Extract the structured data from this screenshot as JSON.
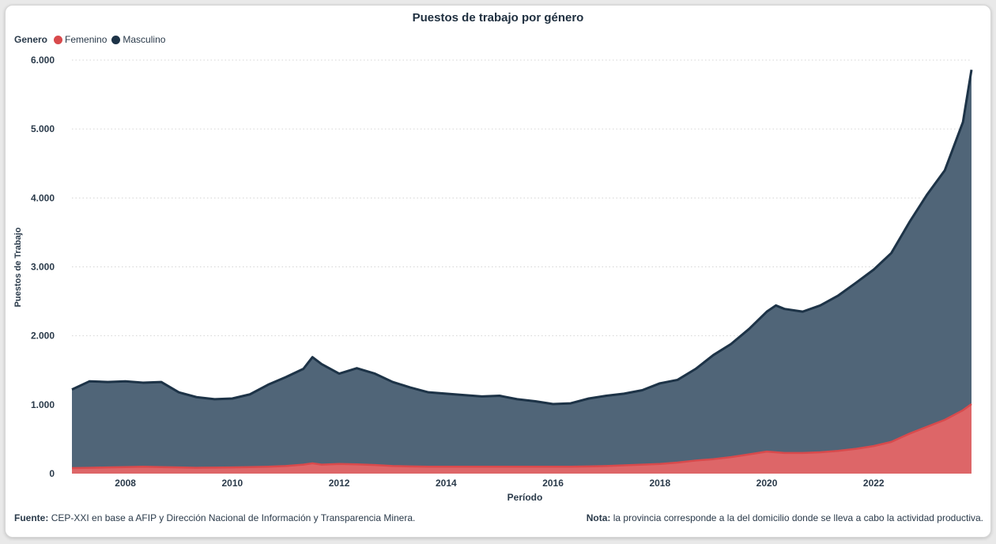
{
  "colors": {
    "femenino": "#d84a4c",
    "femenino_fill": "#dd6668",
    "masculino": "#1d3347",
    "masculino_fill": "#506578",
    "grid": "#d5d5d5"
  },
  "legend": {
    "title": "Genero",
    "items": [
      {
        "label": "Femenino",
        "color": "#d84a4c"
      },
      {
        "label": "Masculino",
        "color": "#1d3347"
      }
    ]
  },
  "footer": {
    "source_label": "Fuente:",
    "source_text": "CEP-XXI en base a AFIP y Dirección Nacional de Información y Transparencia Minera.",
    "note_label": "Nota:",
    "note_text": "la provincia corresponde a la del domicilio donde se lleva a cabo la actividad productiva."
  },
  "chart_data": {
    "type": "area",
    "stacked": true,
    "title": "Puestos de trabajo por género",
    "xlabel": "Período",
    "ylabel": "Puestos de Trabajo",
    "xlim": [
      2007.0,
      2023.83
    ],
    "ylim": [
      0,
      6000
    ],
    "x_ticks": [
      "2008",
      "2010",
      "2012",
      "2014",
      "2016",
      "2018",
      "2020",
      "2022"
    ],
    "y_ticks": [
      "0",
      "1.000",
      "2.000",
      "3.000",
      "4.000",
      "5.000",
      "6.000"
    ],
    "y_tick_values": [
      0,
      1000,
      2000,
      3000,
      4000,
      5000,
      6000
    ],
    "grid": true,
    "legend_position": "top-left",
    "x": [
      2007.0,
      2007.33,
      2007.67,
      2008.0,
      2008.33,
      2008.67,
      2009.0,
      2009.33,
      2009.67,
      2010.0,
      2010.33,
      2010.67,
      2011.0,
      2011.33,
      2011.5,
      2011.67,
      2012.0,
      2012.33,
      2012.67,
      2013.0,
      2013.33,
      2013.67,
      2014.0,
      2014.33,
      2014.67,
      2015.0,
      2015.33,
      2015.67,
      2016.0,
      2016.33,
      2016.67,
      2017.0,
      2017.33,
      2017.67,
      2018.0,
      2018.33,
      2018.67,
      2019.0,
      2019.33,
      2019.67,
      2020.0,
      2020.17,
      2020.33,
      2020.67,
      2021.0,
      2021.33,
      2021.67,
      2022.0,
      2022.33,
      2022.67,
      2023.0,
      2023.33,
      2023.67,
      2023.83
    ],
    "series": [
      {
        "name": "Femenino",
        "total_values": [
          80,
          85,
          90,
          95,
          100,
          95,
          90,
          85,
          88,
          90,
          95,
          100,
          110,
          130,
          150,
          130,
          140,
          135,
          125,
          110,
          105,
          100,
          100,
          100,
          100,
          100,
          100,
          100,
          100,
          100,
          105,
          110,
          120,
          130,
          140,
          160,
          190,
          210,
          240,
          280,
          320,
          310,
          300,
          300,
          310,
          330,
          360,
          400,
          460,
          580,
          680,
          780,
          920,
          1010
        ]
      },
      {
        "name": "Masculino",
        "total_values": [
          1220,
          1340,
          1330,
          1340,
          1320,
          1330,
          1180,
          1110,
          1080,
          1090,
          1150,
          1290,
          1400,
          1520,
          1690,
          1590,
          1450,
          1530,
          1450,
          1330,
          1250,
          1180,
          1160,
          1140,
          1120,
          1130,
          1080,
          1050,
          1010,
          1020,
          1090,
          1130,
          1160,
          1210,
          1310,
          1360,
          1520,
          1720,
          1880,
          2100,
          2350,
          2440,
          2390,
          2350,
          2440,
          2580,
          2770,
          2960,
          3200,
          3650,
          4050,
          4400,
          5100,
          5860
        ]
      }
    ]
  }
}
